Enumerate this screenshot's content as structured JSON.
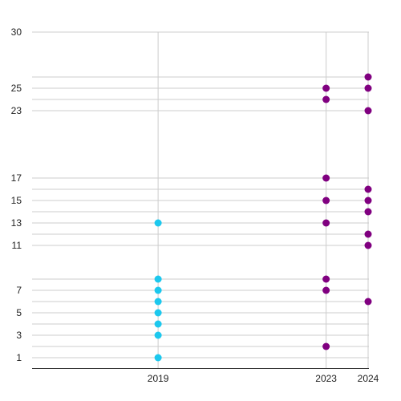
{
  "chart_data": {
    "type": "scatter",
    "title": "",
    "xlabel": "",
    "ylabel": "",
    "x_ticks": [
      "2019",
      "2023",
      "2024"
    ],
    "y_ticks": [
      1,
      3,
      5,
      7,
      11,
      13,
      15,
      17,
      23,
      25,
      30
    ],
    "ylim": [
      0,
      30
    ],
    "xlim": [
      2016,
      2024
    ],
    "grid": true,
    "legend": "none",
    "series": [
      {
        "color": "#1cc8ee",
        "points": [
          {
            "x": 2019,
            "y": 1
          },
          {
            "x": 2019,
            "y": 3
          },
          {
            "x": 2019,
            "y": 4
          },
          {
            "x": 2019,
            "y": 5
          },
          {
            "x": 2019,
            "y": 6
          },
          {
            "x": 2019,
            "y": 7
          },
          {
            "x": 2019,
            "y": 8
          },
          {
            "x": 2019,
            "y": 13
          }
        ]
      },
      {
        "color": "#800080",
        "points": [
          {
            "x": 2023,
            "y": 2
          },
          {
            "x": 2023,
            "y": 7
          },
          {
            "x": 2023,
            "y": 8
          },
          {
            "x": 2023,
            "y": 13
          },
          {
            "x": 2023,
            "y": 15
          },
          {
            "x": 2023,
            "y": 17
          },
          {
            "x": 2023,
            "y": 24
          },
          {
            "x": 2023,
            "y": 25
          },
          {
            "x": 2024,
            "y": 6
          },
          {
            "x": 2024,
            "y": 11
          },
          {
            "x": 2024,
            "y": 12
          },
          {
            "x": 2024,
            "y": 14
          },
          {
            "x": 2024,
            "y": 15
          },
          {
            "x": 2024,
            "y": 16
          },
          {
            "x": 2024,
            "y": 23
          },
          {
            "x": 2024,
            "y": 25
          },
          {
            "x": 2024,
            "y": 26
          }
        ]
      }
    ],
    "colors": {
      "grid": "#cccccc",
      "axis": "#333333",
      "text": "#222222"
    }
  }
}
